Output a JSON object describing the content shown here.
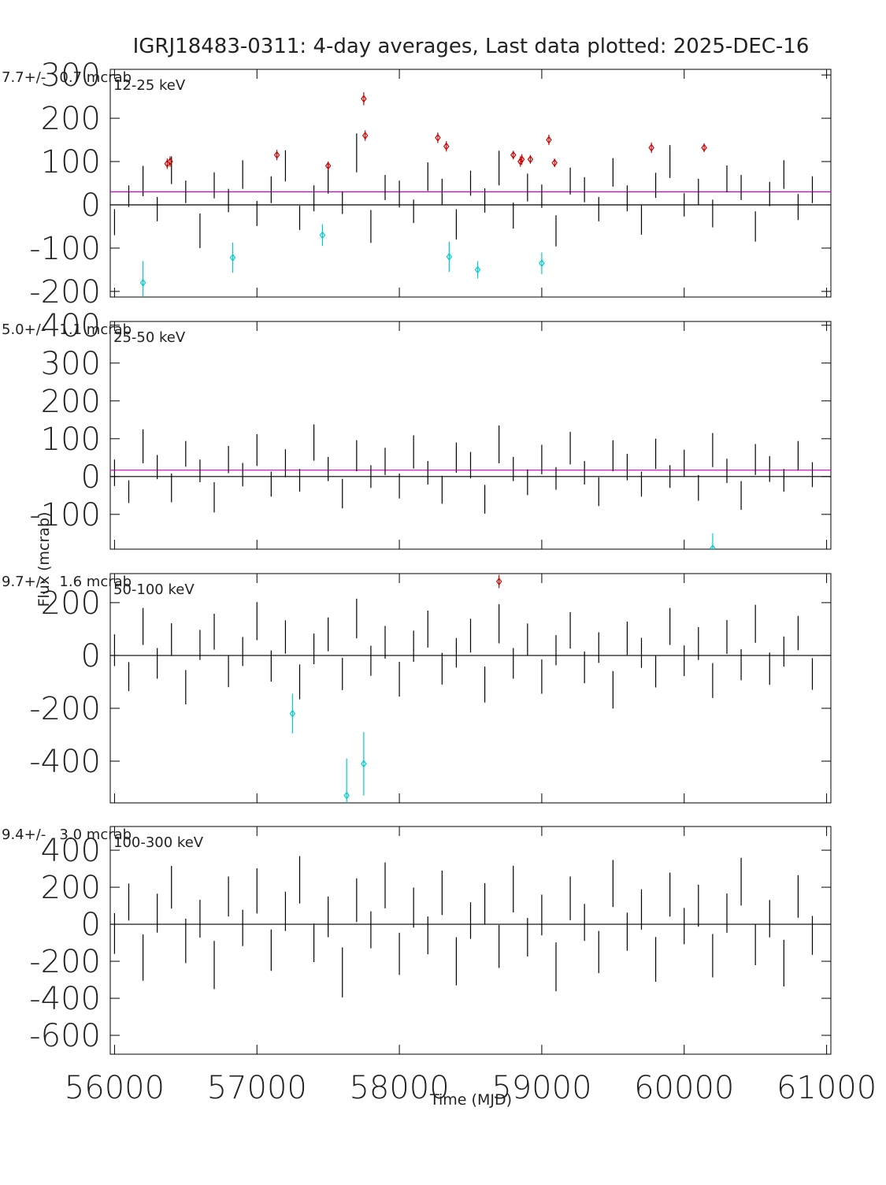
{
  "chart_data": [
    {
      "type": "errorbar",
      "title": "IGRJ18483-0311:  4-day averages,  Last data plotted: 2025-DEC-16",
      "ylabel": "Flux (mcrab)",
      "annotation": "7.7+/-   0.7 mcrab",
      "band": "12-25 keV",
      "xlim": [
        55970,
        61030
      ],
      "xticks": [
        56000,
        57000,
        58000,
        59000,
        60000,
        61000
      ],
      "ylim": [
        -213,
        313
      ],
      "yticks": [
        -200,
        -100,
        0,
        100,
        200,
        300
      ],
      "mean": 30,
      "mean_color": "#cc00cc",
      "series": [
        {
          "color": "#000000",
          "x": [
            56000,
            56100,
            56200,
            56300,
            56400,
            56500,
            56600,
            56700,
            56800,
            56900,
            57000,
            57100,
            57200,
            57300,
            57400,
            57500,
            57600,
            57700,
            57800,
            57900,
            58000,
            58100,
            58200,
            58300,
            58400,
            58500,
            58600,
            58700,
            58800,
            58900,
            59000,
            59100,
            59200,
            59300,
            59400,
            59500,
            59600,
            59700,
            59800,
            59900,
            60000,
            60100,
            60200,
            60300,
            60400,
            60500,
            60600,
            60700,
            60800,
            60900
          ],
          "values": [
            -40,
            20,
            55,
            -10,
            80,
            30,
            -60,
            45,
            10,
            70,
            -20,
            35,
            90,
            -30,
            15,
            60,
            5,
            120,
            -50,
            40,
            25,
            -15,
            65,
            30,
            -45,
            50,
            10,
            85,
            -25,
            40,
            20,
            -60,
            55,
            35,
            -10,
            75,
            15,
            -35,
            45,
            100,
            0,
            30,
            -20,
            60,
            40,
            -50,
            25,
            70,
            -5,
            35
          ],
          "errors": [
            30,
            25,
            35,
            28,
            32,
            26,
            40,
            30,
            27,
            33,
            29,
            31,
            36,
            28,
            30,
            34,
            26,
            45,
            38,
            29,
            31,
            27,
            33,
            30,
            35,
            29,
            28,
            40,
            30,
            32,
            27,
            36,
            31,
            29,
            28,
            33,
            30,
            34,
            29,
            38,
            27,
            30,
            32,
            31,
            29,
            35,
            28,
            33,
            30,
            31
          ]
        },
        {
          "color": "#cc0000",
          "x": [
            56370,
            56390,
            57140,
            57500,
            57750,
            57760,
            58270,
            58330,
            58800,
            58850,
            58860,
            58920,
            59050,
            59090,
            59770,
            60140
          ],
          "values": [
            95,
            100,
            115,
            90,
            245,
            160,
            155,
            135,
            115,
            100,
            105,
            105,
            150,
            97,
            132,
            132
          ],
          "errors": [
            12,
            12,
            12,
            10,
            15,
            12,
            12,
            12,
            10,
            12,
            12,
            10,
            12,
            10,
            12,
            10
          ]
        },
        {
          "color": "#00cccc",
          "x": [
            56200,
            56830,
            57460,
            58350,
            58550,
            59000
          ],
          "values": [
            -180,
            -122,
            -70,
            -120,
            -150,
            -135
          ],
          "errors": [
            50,
            35,
            25,
            35,
            20,
            25
          ]
        }
      ]
    },
    {
      "type": "errorbar",
      "annotation": "5.0+/-   1.1 mcrab",
      "band": "25-50 keV",
      "xlim": [
        55970,
        61030
      ],
      "xticks": [
        56000,
        57000,
        58000,
        59000,
        60000,
        61000
      ],
      "ylim": [
        -192,
        410
      ],
      "yticks": [
        -100,
        0,
        100,
        200,
        300,
        400
      ],
      "mean": 17,
      "mean_color": "#cc00cc",
      "series": [
        {
          "color": "#000000",
          "x": [
            56000,
            56100,
            56200,
            56300,
            56400,
            56500,
            56600,
            56700,
            56800,
            56900,
            57000,
            57100,
            57200,
            57300,
            57400,
            57500,
            57600,
            57700,
            57800,
            57900,
            58000,
            58100,
            58200,
            58300,
            58400,
            58500,
            58600,
            58700,
            58800,
            58900,
            59000,
            59100,
            59200,
            59300,
            59400,
            59500,
            59600,
            59700,
            59800,
            59900,
            60000,
            60100,
            60200,
            60300,
            60400,
            60500,
            60600,
            60700,
            60800,
            60900
          ],
          "values": [
            10,
            -40,
            80,
            25,
            -30,
            60,
            15,
            -55,
            45,
            5,
            70,
            -20,
            35,
            -10,
            90,
            20,
            -45,
            55,
            0,
            40,
            -25,
            65,
            10,
            -35,
            50,
            30,
            -60,
            85,
            20,
            -15,
            45,
            -5,
            75,
            10,
            -40,
            55,
            25,
            -20,
            60,
            0,
            35,
            -30,
            70,
            15,
            -50,
            45,
            20,
            -10,
            55,
            5
          ],
          "errors": [
            35,
            30,
            45,
            32,
            38,
            34,
            30,
            40,
            36,
            31,
            42,
            33,
            37,
            30,
            48,
            32,
            39,
            41,
            30,
            36,
            33,
            44,
            31,
            37,
            40,
            35,
            38,
            50,
            32,
            34,
            39,
            30,
            43,
            31,
            38,
            41,
            35,
            33,
            40,
            30,
            36,
            34,
            45,
            32,
            38,
            41,
            34,
            30,
            39,
            33
          ]
        },
        {
          "color": "#00cccc",
          "x": [
            60200
          ],
          "values": [
            -190
          ],
          "errors": [
            40
          ]
        }
      ]
    },
    {
      "type": "errorbar",
      "annotation": "9.7+/-   1.6 mcrab",
      "band": "50-100 keV",
      "xlim": [
        55970,
        61030
      ],
      "xticks": [
        56000,
        57000,
        58000,
        59000,
        60000,
        61000
      ],
      "ylim": [
        -558,
        310
      ],
      "yticks": [
        -400,
        -200,
        0,
        200
      ],
      "series": [
        {
          "color": "#000000",
          "x": [
            56000,
            56100,
            56200,
            56300,
            56400,
            56500,
            56600,
            56700,
            56800,
            56900,
            57000,
            57100,
            57200,
            57300,
            57400,
            57500,
            57600,
            57700,
            57800,
            57900,
            58000,
            58100,
            58200,
            58300,
            58400,
            58500,
            58600,
            58700,
            58800,
            58900,
            59000,
            59100,
            59200,
            59300,
            59400,
            59500,
            59600,
            59700,
            59800,
            59900,
            60000,
            60100,
            60200,
            60300,
            60400,
            60500,
            60600,
            60700,
            60800,
            60900
          ],
          "values": [
            20,
            -80,
            110,
            -30,
            60,
            -120,
            40,
            90,
            -60,
            15,
            130,
            -40,
            70,
            -100,
            25,
            80,
            -70,
            140,
            -20,
            50,
            -90,
            35,
            100,
            -50,
            10,
            75,
            -110,
            120,
            -30,
            60,
            -80,
            20,
            95,
            -45,
            30,
            -130,
            65,
            10,
            -60,
            110,
            -20,
            45,
            -95,
            70,
            -35,
            120,
            -50,
            15,
            85,
            -70
          ],
          "errors": [
            60,
            55,
            70,
            58,
            62,
            65,
            57,
            68,
            60,
            55,
            72,
            59,
            63,
            66,
            58,
            64,
            61,
            75,
            57,
            62,
            66,
            59,
            70,
            60,
            56,
            64,
            68,
            74,
            58,
            61,
            65,
            57,
            69,
            60,
            58,
            71,
            63,
            57,
            61,
            70,
            58,
            62,
            66,
            64,
            59,
            72,
            61,
            57,
            65,
            60
          ]
        },
        {
          "color": "#cc0000",
          "x": [
            58700
          ],
          "values": [
            280
          ],
          "errors": [
            25
          ]
        },
        {
          "color": "#00cccc",
          "x": [
            57250,
            57630,
            57750
          ],
          "values": [
            -220,
            -530,
            -410
          ],
          "errors": [
            75,
            140,
            120
          ]
        }
      ]
    },
    {
      "type": "errorbar",
      "annotation": "9.4+/-   3.0 mcrab",
      "band": "100-300 keV",
      "xlabel": "Time (MJD)",
      "xlim": [
        55970,
        61030
      ],
      "xticks": [
        56000,
        57000,
        58000,
        59000,
        60000,
        61000
      ],
      "ylim": [
        -702,
        528
      ],
      "yticks": [
        -600,
        -400,
        -200,
        0,
        200,
        400
      ],
      "series": [
        {
          "color": "#000000",
          "x": [
            56000,
            56100,
            56200,
            56300,
            56400,
            56500,
            56600,
            56700,
            56800,
            56900,
            57000,
            57100,
            57200,
            57300,
            57400,
            57500,
            57600,
            57700,
            57800,
            57900,
            58000,
            58100,
            58200,
            58300,
            58400,
            58500,
            58600,
            58700,
            58800,
            58900,
            59000,
            59100,
            59200,
            59300,
            59400,
            59500,
            59600,
            59700,
            59800,
            59900,
            60000,
            60100,
            60200,
            60300,
            60400,
            60500,
            60600,
            60700,
            60800,
            60900
          ],
          "values": [
            -50,
            120,
            -180,
            60,
            200,
            -90,
            30,
            -220,
            150,
            -20,
            180,
            -140,
            70,
            240,
            -100,
            40,
            -260,
            130,
            -30,
            210,
            -160,
            90,
            -60,
            170,
            -200,
            20,
            110,
            -120,
            190,
            -70,
            50,
            -230,
            140,
            10,
            -150,
            220,
            -40,
            80,
            -190,
            160,
            -10,
            100,
            -170,
            60,
            230,
            -110,
            30,
            -210,
            150,
            -60
          ],
          "errors": [
            110,
            100,
            125,
            105,
            115,
            120,
            102,
            130,
            108,
            98,
            122,
            112,
            106,
            128,
            104,
            110,
            135,
            118,
            100,
            124,
            114,
            108,
            102,
            120,
            130,
            99,
            112,
            116,
            126,
            104,
            110,
            132,
            118,
            100,
            114,
            127,
            103,
            109,
            121,
            119,
            98,
            113,
            117,
            106,
            129,
            111,
            101,
            126,
            115,
            105
          ]
        }
      ]
    }
  ]
}
